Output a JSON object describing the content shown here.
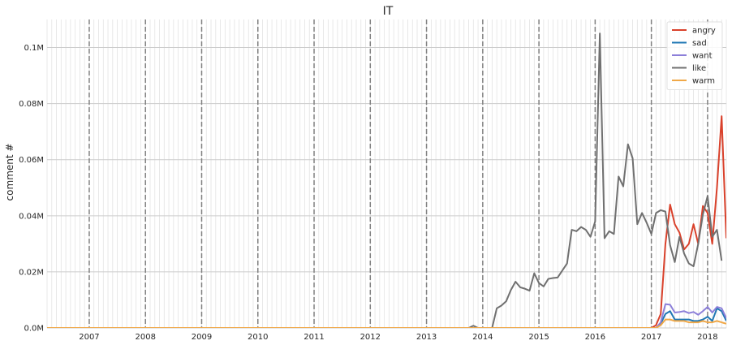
{
  "chart_data": {
    "type": "line",
    "title": "IT",
    "xlabel": "",
    "ylabel": "comment #",
    "x_start": "2006-04",
    "x_end": "2018-05",
    "ylim": [
      0,
      0.11
    ],
    "y_unit_suffix": "M",
    "y_ticks": [
      0,
      0.02,
      0.04,
      0.06,
      0.08,
      0.1
    ],
    "y_tick_labels": [
      "0.0M",
      "0.02M",
      "0.04M",
      "0.06M",
      "0.08M",
      "0.1M"
    ],
    "x_tick_labels": [
      "2007",
      "2008",
      "2009",
      "2010",
      "2011",
      "2012",
      "2013",
      "2014",
      "2015",
      "2016",
      "2017",
      "2018"
    ],
    "x_ticks": [
      "2007-01",
      "2008-01",
      "2009-01",
      "2010-01",
      "2011-01",
      "2012-01",
      "2013-01",
      "2014-01",
      "2015-01",
      "2016-01",
      "2017-01",
      "2018-01"
    ],
    "vlines": [
      "2007-01",
      "2008-01",
      "2009-01",
      "2010-01",
      "2011-01",
      "2012-01",
      "2013-01",
      "2014-01",
      "2015-01",
      "2016-01",
      "2017-01",
      "2018-01"
    ],
    "grid": true,
    "minor_grid": "monthly",
    "legend_position": "top-right",
    "series": [
      {
        "name": "angry",
        "color": "#d9412b",
        "points": [
          [
            "2006-04",
            0
          ],
          [
            "2017-01",
            0
          ],
          [
            "2017-02",
            0.001
          ],
          [
            "2017-03",
            0.005
          ],
          [
            "2017-04",
            0.03
          ],
          [
            "2017-05",
            0.044
          ],
          [
            "2017-06",
            0.037
          ],
          [
            "2017-07",
            0.034
          ],
          [
            "2017-08",
            0.028
          ],
          [
            "2017-09",
            0.03
          ],
          [
            "2017-10",
            0.037
          ],
          [
            "2017-11",
            0.03
          ],
          [
            "2017-12",
            0.0435
          ],
          [
            "2018-01",
            0.041
          ],
          [
            "2018-02",
            0.03
          ],
          [
            "2018-03",
            0.05
          ],
          [
            "2018-04",
            0.0755
          ],
          [
            "2018-05",
            0.032
          ]
        ]
      },
      {
        "name": "sad",
        "color": "#1f77b4",
        "points": [
          [
            "2006-04",
            0
          ],
          [
            "2017-02",
            0
          ],
          [
            "2017-03",
            0.0015
          ],
          [
            "2017-04",
            0.005
          ],
          [
            "2017-05",
            0.006
          ],
          [
            "2017-06",
            0.003
          ],
          [
            "2017-07",
            0.003
          ],
          [
            "2017-08",
            0.003
          ],
          [
            "2017-09",
            0.003
          ],
          [
            "2017-10",
            0.0025
          ],
          [
            "2017-11",
            0.0025
          ],
          [
            "2017-12",
            0.003
          ],
          [
            "2018-01",
            0.004
          ],
          [
            "2018-02",
            0.0025
          ],
          [
            "2018-03",
            0.007
          ],
          [
            "2018-04",
            0.006
          ],
          [
            "2018-05",
            0.0025
          ]
        ]
      },
      {
        "name": "want",
        "color": "#8c7fd9",
        "points": [
          [
            "2006-04",
            0
          ],
          [
            "2017-02",
            0
          ],
          [
            "2017-03",
            0.002
          ],
          [
            "2017-04",
            0.0085
          ],
          [
            "2017-05",
            0.0083
          ],
          [
            "2017-06",
            0.0055
          ],
          [
            "2017-07",
            0.0057
          ],
          [
            "2017-08",
            0.006
          ],
          [
            "2017-09",
            0.0053
          ],
          [
            "2017-10",
            0.0057
          ],
          [
            "2017-11",
            0.0047
          ],
          [
            "2017-12",
            0.006
          ],
          [
            "2018-01",
            0.0075
          ],
          [
            "2018-02",
            0.0055
          ],
          [
            "2018-03",
            0.0075
          ],
          [
            "2018-04",
            0.007
          ],
          [
            "2018-05",
            0.0035
          ]
        ]
      },
      {
        "name": "like",
        "color": "#707070",
        "points": [
          [
            "2006-04",
            0
          ],
          [
            "2013-10",
            0
          ],
          [
            "2013-11",
            0.0008
          ],
          [
            "2013-12",
            0
          ],
          [
            "2014-03",
            0
          ],
          [
            "2014-04",
            0.007
          ],
          [
            "2014-05",
            0.008
          ],
          [
            "2014-06",
            0.0095
          ],
          [
            "2014-07",
            0.0135
          ],
          [
            "2014-08",
            0.0165
          ],
          [
            "2014-09",
            0.0145
          ],
          [
            "2014-10",
            0.014
          ],
          [
            "2014-11",
            0.0133
          ],
          [
            "2014-12",
            0.0195
          ],
          [
            "2015-01",
            0.016
          ],
          [
            "2015-02",
            0.0148
          ],
          [
            "2015-03",
            0.0175
          ],
          [
            "2015-04",
            0.0178
          ],
          [
            "2015-05",
            0.018
          ],
          [
            "2015-06",
            0.0205
          ],
          [
            "2015-07",
            0.023
          ],
          [
            "2015-08",
            0.035
          ],
          [
            "2015-09",
            0.0345
          ],
          [
            "2015-10",
            0.036
          ],
          [
            "2015-11",
            0.035
          ],
          [
            "2015-12",
            0.0325
          ],
          [
            "2016-01",
            0.038
          ],
          [
            "2016-02",
            0.105
          ],
          [
            "2016-03",
            0.032
          ],
          [
            "2016-04",
            0.0345
          ],
          [
            "2016-05",
            0.0335
          ],
          [
            "2016-06",
            0.054
          ],
          [
            "2016-07",
            0.0505
          ],
          [
            "2016-08",
            0.0655
          ],
          [
            "2016-09",
            0.0605
          ],
          [
            "2016-10",
            0.037
          ],
          [
            "2016-11",
            0.041
          ],
          [
            "2016-12",
            0.0375
          ],
          [
            "2017-01",
            0.0335
          ],
          [
            "2017-02",
            0.041
          ],
          [
            "2017-03",
            0.042
          ],
          [
            "2017-04",
            0.0415
          ],
          [
            "2017-05",
            0.0295
          ],
          [
            "2017-06",
            0.0235
          ],
          [
            "2017-07",
            0.0325
          ],
          [
            "2017-08",
            0.0265
          ],
          [
            "2017-09",
            0.023
          ],
          [
            "2017-10",
            0.022
          ],
          [
            "2017-11",
            0.03
          ],
          [
            "2017-12",
            0.0405
          ],
          [
            "2018-01",
            0.047
          ],
          [
            "2018-02",
            0.0325
          ],
          [
            "2018-03",
            0.035
          ],
          [
            "2018-04",
            0.024
          ]
        ]
      },
      {
        "name": "warm",
        "color": "#f0a848",
        "points": [
          [
            "2006-04",
            0
          ],
          [
            "2017-02",
            0
          ],
          [
            "2017-03",
            0.001
          ],
          [
            "2017-04",
            0.003
          ],
          [
            "2017-05",
            0.003
          ],
          [
            "2017-06",
            0.0025
          ],
          [
            "2017-07",
            0.0025
          ],
          [
            "2017-08",
            0.0025
          ],
          [
            "2017-09",
            0.002
          ],
          [
            "2017-10",
            0.002
          ],
          [
            "2017-11",
            0.002
          ],
          [
            "2017-12",
            0.0025
          ],
          [
            "2018-01",
            0.002
          ],
          [
            "2018-02",
            0.002
          ],
          [
            "2018-03",
            0.0025
          ],
          [
            "2018-04",
            0.002
          ],
          [
            "2018-05",
            0.0015
          ]
        ]
      }
    ]
  }
}
